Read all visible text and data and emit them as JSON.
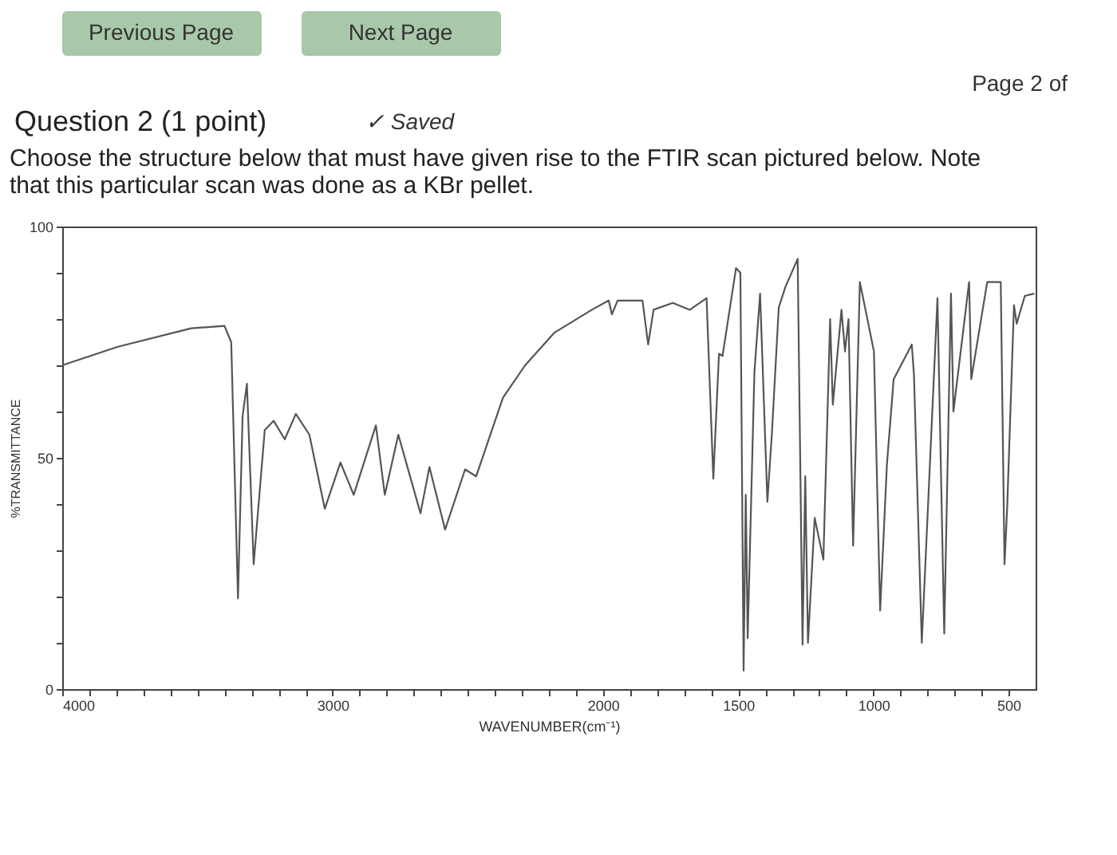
{
  "chart_data": {
    "type": "line",
    "title": "Question 2 (1 point)",
    "subtitle": "Choose the structure below that must have given rise to the FTIR scan pictured below.  Note that this particular scan was done as a KBr pellet.",
    "annotations": [
      "Previous Page",
      "Next Page",
      "Page 2 of",
      "✓ Saved"
    ],
    "xlabel": "WAVENUMBER(cm⁻¹)",
    "ylabel": "%TRANSMITTANCE",
    "series": [
      {
        "color": "#555555",
        "x": [
          4000,
          3794,
          3523,
          3400,
          3375,
          3350,
          3333,
          3317,
          3292,
          3251,
          3218,
          3177,
          3136,
          3086,
          3029,
          2971,
          2922,
          2840,
          2807,
          2757,
          2675,
          2642,
          2584,
          2510,
          2469,
          2370,
          2288,
          2181,
          2041,
          1979,
          1967,
          1946,
          1854,
          1833,
          1813,
          1742,
          1679,
          1617,
          1592,
          1571,
          1558,
          1508,
          1492,
          1480,
          1472,
          1465,
          1440,
          1419,
          1392,
          1375,
          1350,
          1325,
          1280,
          1262,
          1252,
          1242,
          1217,
          1185,
          1160,
          1150,
          1118,
          1105,
          1092,
          1075,
          1050,
          998,
          975,
          950,
          925,
          858,
          850,
          821,
          763,
          738,
          713,
          704,
          646,
          638,
          579,
          529,
          515,
          505,
          480,
          470,
          440,
          405
        ],
        "values": [
          70,
          74,
          78,
          78.5,
          75,
          19.6,
          59,
          66,
          27,
          56,
          58,
          54,
          59.5,
          55,
          39,
          49,
          42,
          57,
          42,
          55,
          38,
          48,
          34.5,
          47.5,
          46,
          63,
          70,
          77,
          82,
          84,
          81,
          84,
          84,
          74.5,
          82,
          83.5,
          82,
          84.5,
          45.5,
          72.5,
          72,
          91,
          90,
          4,
          42,
          11,
          68.5,
          85.5,
          40.5,
          55.6,
          82.5,
          87,
          93,
          9.6,
          46,
          10,
          37,
          28,
          80,
          61.5,
          82,
          73,
          80,
          31,
          88,
          73,
          17,
          48.5,
          67,
          74.5,
          68,
          10,
          84.5,
          12,
          85.5,
          60,
          88,
          67,
          88,
          88,
          27,
          39.5,
          83,
          79,
          85,
          85.5
        ]
      }
    ],
    "xlim": [
      4000,
      400
    ],
    "xticks": [
      4000,
      {
        "value": 3900,
        "label": null
      },
      {
        "value": 3800,
        "label": null
      },
      {
        "value": 3700,
        "label": null
      },
      {
        "value": 3600,
        "label": null
      },
      {
        "value": 3500,
        "label": null
      },
      {
        "value": 3400,
        "label": null
      },
      {
        "value": 3300,
        "label": null
      },
      {
        "value": 3200,
        "label": null
      },
      {
        "value": 3100,
        "label": null
      },
      3000,
      {
        "value": 2900,
        "label": null
      },
      {
        "value": 2800,
        "label": null
      },
      {
        "value": 2700,
        "label": null
      },
      {
        "value": 2600,
        "label": null
      },
      {
        "value": 2500,
        "label": null
      },
      {
        "value": 2400,
        "label": null
      },
      {
        "value": 2300,
        "label": null
      },
      {
        "value": 2200,
        "label": null
      },
      {
        "value": 2100,
        "label": null
      },
      2000,
      {
        "value": 1900,
        "label": null
      },
      {
        "value": 1800,
        "label": null
      },
      {
        "value": 1700,
        "label": null
      },
      {
        "value": 1600,
        "label": null
      },
      1500,
      {
        "value": 1400,
        "label": null
      },
      {
        "value": 1300,
        "label": null
      },
      {
        "value": 1200,
        "label": null
      },
      {
        "value": 1100,
        "label": null
      },
      1000,
      {
        "value": 900,
        "label": null
      },
      {
        "value": 800,
        "label": null
      },
      {
        "value": 700,
        "label": null
      },
      {
        "value": 600,
        "label": null
      },
      500
    ],
    "ylim": [
      0,
      100
    ],
    "yticks": [
      0,
      {
        "value": 10,
        "label": null
      },
      {
        "value": 20,
        "label": null
      },
      {
        "value": 30,
        "label": null
      },
      {
        "value": 40,
        "label": null
      },
      50,
      {
        "value": 60,
        "label": null
      },
      {
        "value": 70,
        "label": null
      },
      {
        "value": 80,
        "label": null
      },
      {
        "value": 90,
        "label": null
      },
      100
    ],
    "grid": false,
    "legend": false
  }
}
